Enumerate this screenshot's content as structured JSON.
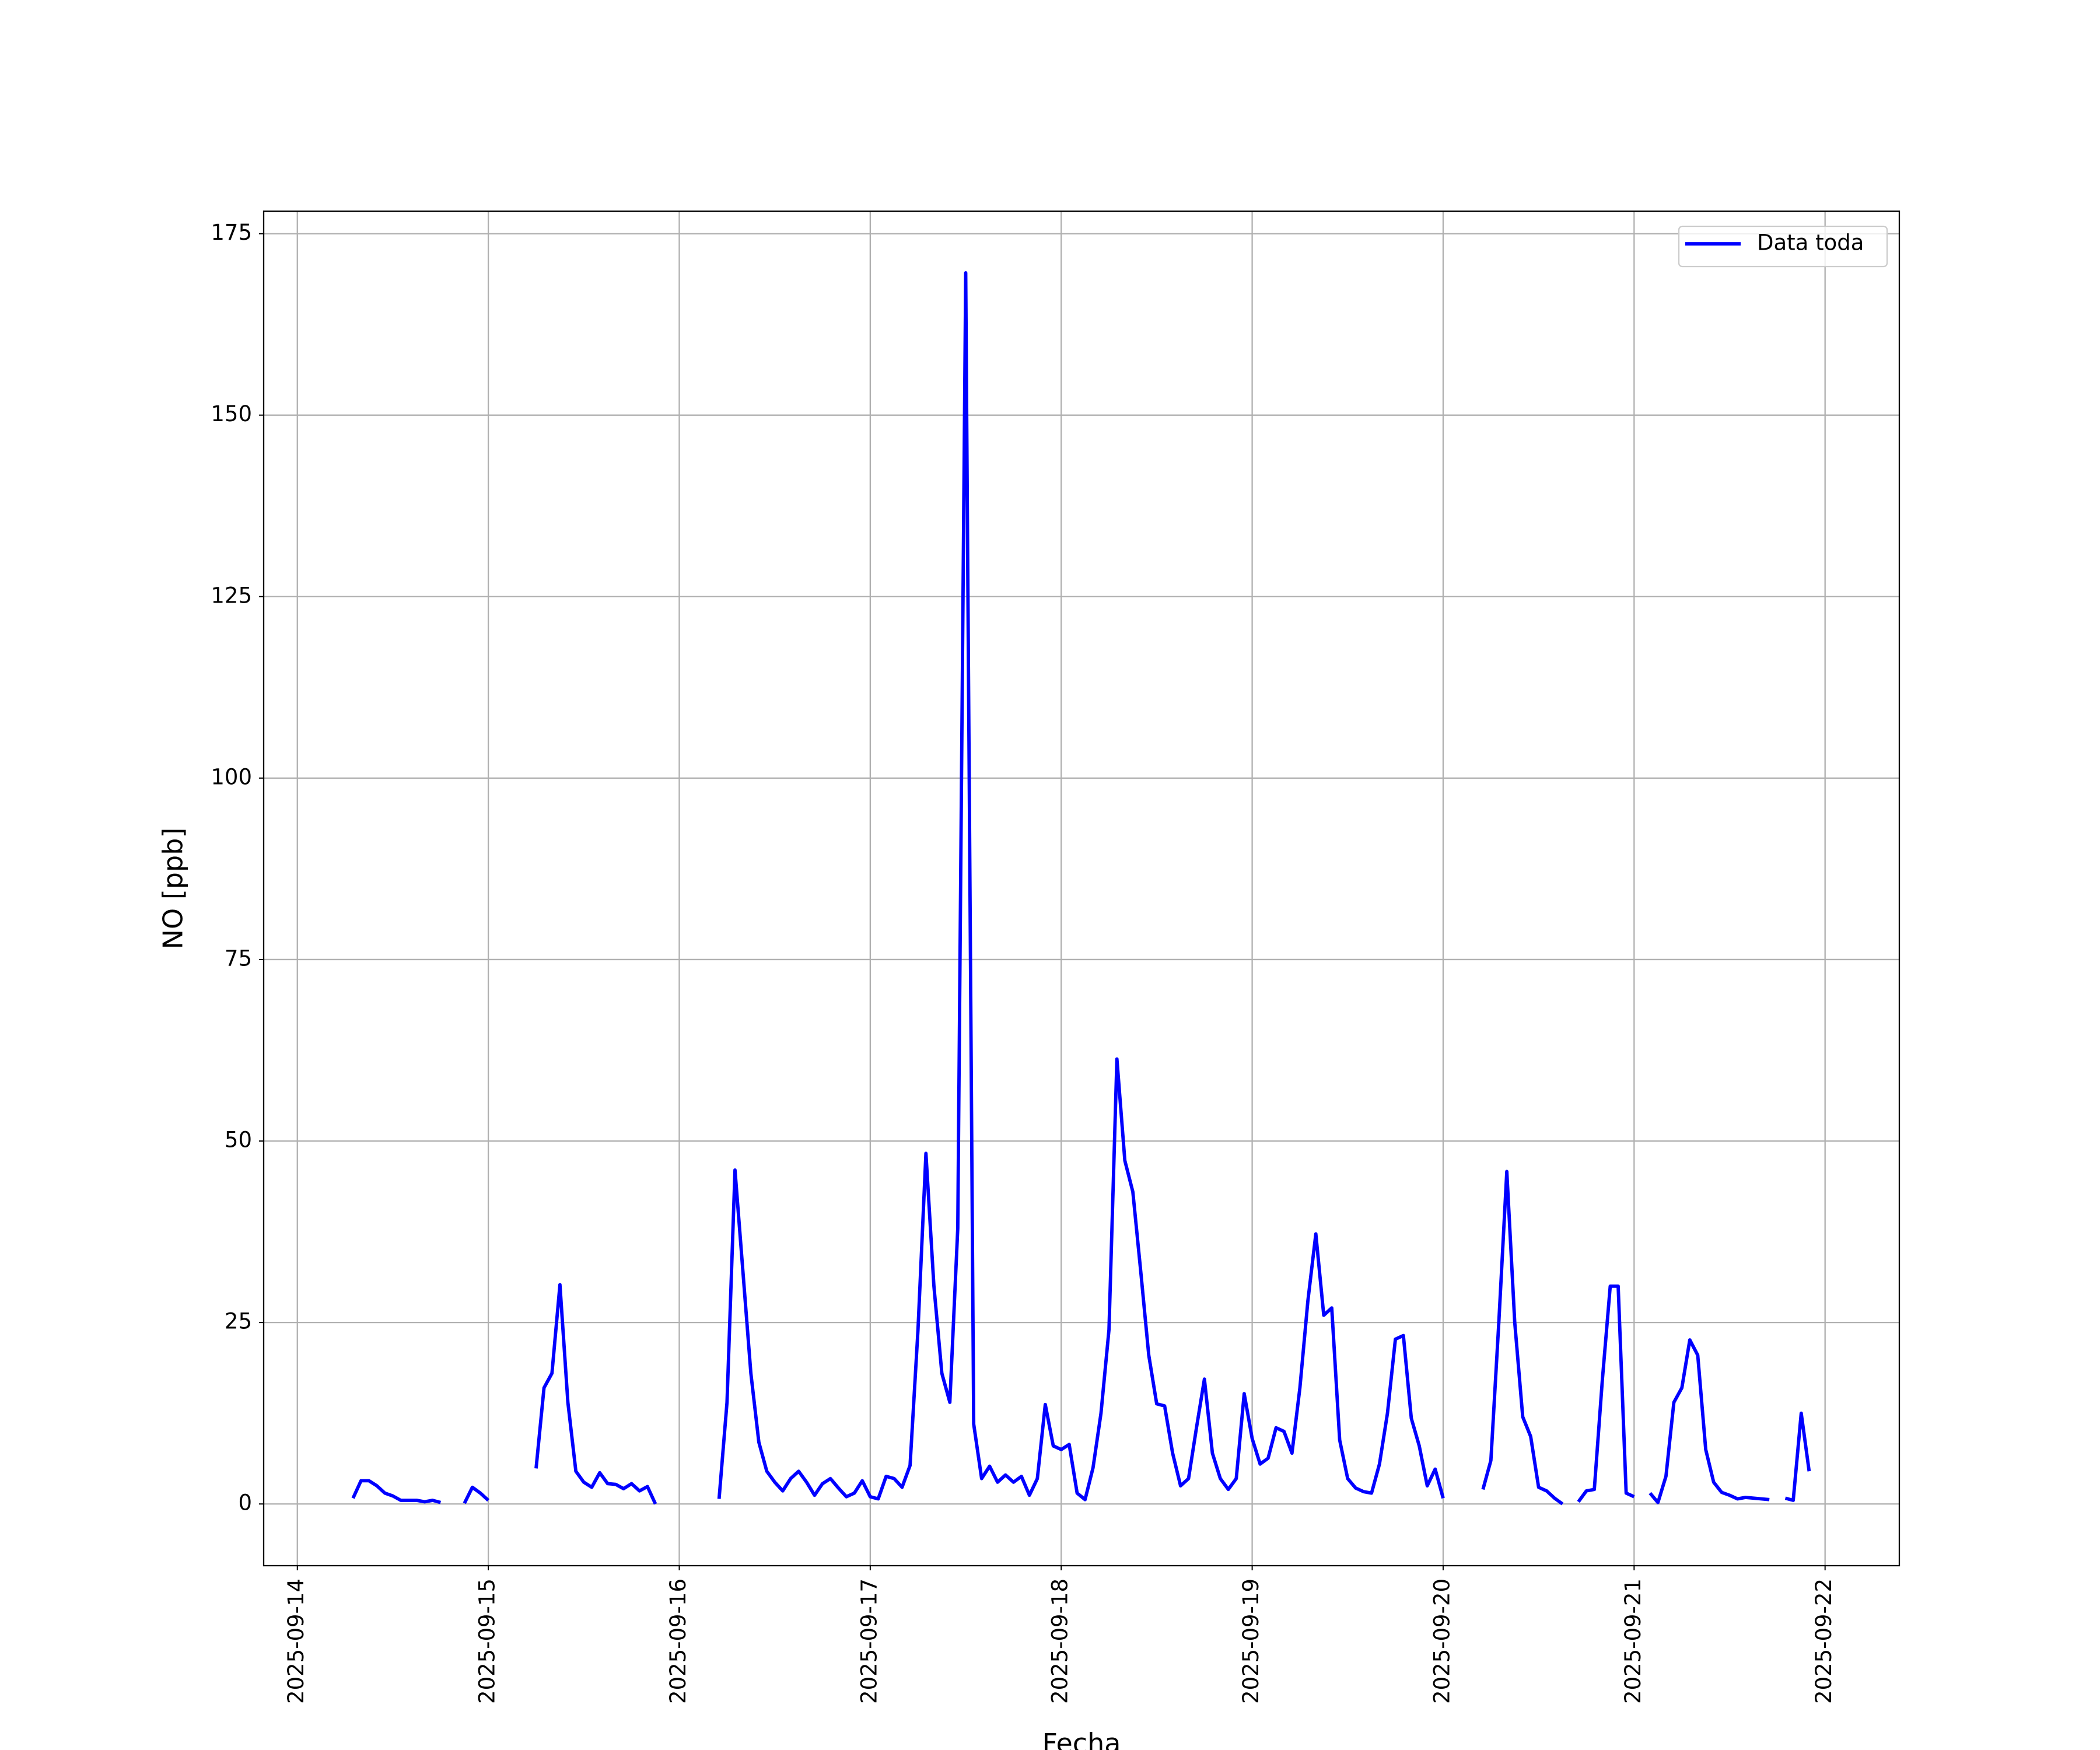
{
  "chart_data": {
    "type": "line",
    "xlabel": "Fecha",
    "ylabel": "NO [ppb]",
    "x": [
      "2025-09-14 07:00",
      "2025-09-14 08:00",
      "2025-09-14 09:00",
      "2025-09-14 10:00",
      "2025-09-14 11:00",
      "2025-09-14 12:00",
      "2025-09-14 13:00",
      "2025-09-14 14:00",
      "2025-09-14 15:00",
      "2025-09-14 16:00",
      "2025-09-14 17:00",
      "2025-09-14 18:00",
      "2025-09-14 19:00",
      "2025-09-14 21:00",
      "2025-09-14 22:00",
      "2025-09-14 23:00",
      "2025-09-15 00:00",
      "2025-09-15 03:00",
      "2025-09-15 06:00",
      "2025-09-15 07:00",
      "2025-09-15 08:00",
      "2025-09-15 09:00",
      "2025-09-15 10:00",
      "2025-09-15 11:00",
      "2025-09-15 12:00",
      "2025-09-15 13:00",
      "2025-09-15 14:00",
      "2025-09-15 15:00",
      "2025-09-15 16:00",
      "2025-09-15 17:00",
      "2025-09-15 18:00",
      "2025-09-15 19:00",
      "2025-09-15 20:00",
      "2025-09-15 21:00",
      "2025-09-16 02:00",
      "2025-09-16 05:00",
      "2025-09-16 06:00",
      "2025-09-16 07:00",
      "2025-09-16 08:00",
      "2025-09-16 09:00",
      "2025-09-16 10:00",
      "2025-09-16 11:00",
      "2025-09-16 12:00",
      "2025-09-16 13:00",
      "2025-09-16 14:00",
      "2025-09-16 15:00",
      "2025-09-16 16:00",
      "2025-09-16 17:00",
      "2025-09-16 18:00",
      "2025-09-16 19:00",
      "2025-09-16 20:00",
      "2025-09-16 21:00",
      "2025-09-16 22:00",
      "2025-09-16 23:00",
      "2025-09-17 00:00",
      "2025-09-17 01:00",
      "2025-09-17 02:00",
      "2025-09-17 03:00",
      "2025-09-17 04:00",
      "2025-09-17 05:00",
      "2025-09-17 06:00",
      "2025-09-17 07:00",
      "2025-09-17 08:00",
      "2025-09-17 09:00",
      "2025-09-17 10:00",
      "2025-09-17 11:00",
      "2025-09-17 12:00",
      "2025-09-17 13:00",
      "2025-09-17 14:00",
      "2025-09-17 15:00",
      "2025-09-17 16:00",
      "2025-09-17 17:00",
      "2025-09-17 18:00",
      "2025-09-17 19:00",
      "2025-09-17 20:00",
      "2025-09-17 21:00",
      "2025-09-17 22:00",
      "2025-09-17 23:00",
      "2025-09-18 00:00",
      "2025-09-18 01:00",
      "2025-09-18 02:00",
      "2025-09-18 03:00",
      "2025-09-18 04:00",
      "2025-09-18 05:00",
      "2025-09-18 06:00",
      "2025-09-18 07:00",
      "2025-09-18 08:00",
      "2025-09-18 09:00",
      "2025-09-18 10:00",
      "2025-09-18 11:00",
      "2025-09-18 12:00",
      "2025-09-18 13:00",
      "2025-09-18 14:00",
      "2025-09-18 15:00",
      "2025-09-18 16:00",
      "2025-09-18 17:00",
      "2025-09-18 18:00",
      "2025-09-18 19:00",
      "2025-09-18 20:00",
      "2025-09-18 21:00",
      "2025-09-18 22:00",
      "2025-09-18 23:00",
      "2025-09-19 00:00",
      "2025-09-19 01:00",
      "2025-09-19 02:00",
      "2025-09-19 03:00",
      "2025-09-19 04:00",
      "2025-09-19 05:00",
      "2025-09-19 06:00",
      "2025-09-19 07:00",
      "2025-09-19 08:00",
      "2025-09-19 09:00",
      "2025-09-19 10:00",
      "2025-09-19 11:00",
      "2025-09-19 12:00",
      "2025-09-19 13:00",
      "2025-09-19 14:00",
      "2025-09-19 15:00",
      "2025-09-19 16:00",
      "2025-09-19 17:00",
      "2025-09-19 18:00",
      "2025-09-19 19:00",
      "2025-09-19 20:00",
      "2025-09-19 21:00",
      "2025-09-19 22:00",
      "2025-09-19 23:00",
      "2025-09-20 00:00",
      "2025-09-20 02:00",
      "2025-09-20 05:00",
      "2025-09-20 06:00",
      "2025-09-20 07:00",
      "2025-09-20 08:00",
      "2025-09-20 09:00",
      "2025-09-20 10:00",
      "2025-09-20 11:00",
      "2025-09-20 12:00",
      "2025-09-20 13:00",
      "2025-09-20 14:00",
      "2025-09-20 15:00",
      "2025-09-20 16:00",
      "2025-09-20 17:00",
      "2025-09-20 18:00",
      "2025-09-20 19:00",
      "2025-09-20 20:00",
      "2025-09-20 21:00",
      "2025-09-20 22:00",
      "2025-09-20 23:00",
      "2025-09-21 00:00",
      "2025-09-21 01:00",
      "2025-09-21 02:00",
      "2025-09-21 03:00",
      "2025-09-21 04:00",
      "2025-09-21 05:00",
      "2025-09-21 06:00",
      "2025-09-21 07:00",
      "2025-09-21 08:00",
      "2025-09-21 09:00",
      "2025-09-21 10:00",
      "2025-09-21 11:00",
      "2025-09-21 12:00",
      "2025-09-21 13:00",
      "2025-09-21 14:00",
      "2025-09-21 15:00",
      "2025-09-21 16:00",
      "2025-09-21 17:00",
      "2025-09-21 18:00",
      "2025-09-21 19:00",
      "2025-09-21 20:00",
      "2025-09-21 21:00",
      "2025-09-21 22:00"
    ],
    "series": [
      {
        "name": "Data toda",
        "color": "#0000ff",
        "values": [
          0.8,
          3.2,
          3.2,
          2.5,
          1.5,
          1.1,
          0.5,
          0.5,
          0.5,
          0.3,
          0.5,
          0.2,
          null,
          0.1,
          2.3,
          1.5,
          0.5,
          null,
          4.9,
          16,
          18,
          30.2,
          14,
          4.5,
          3,
          2.3,
          4.3,
          2.8,
          2.7,
          2.1,
          2.8,
          1.8,
          2.4,
          0,
          null,
          0.7,
          14,
          46,
          32,
          18,
          8.5,
          4.5,
          3,
          1.8,
          3.5,
          4.5,
          3,
          1.2,
          2.8,
          3.5,
          2.2,
          1,
          1.5,
          3.2,
          1,
          0.7,
          3.8,
          3.5,
          2.3,
          5.3,
          24,
          48.3,
          30,
          18,
          14,
          38,
          169.6,
          11,
          3.5,
          5.2,
          3,
          4,
          3,
          3.8,
          1.2,
          3.5,
          13.7,
          8,
          7.5,
          8.2,
          1.5,
          0.6,
          5,
          12.5,
          24,
          61.3,
          47.3,
          43,
          32,
          20.5,
          13.8,
          13.5,
          7,
          2.5,
          3.5,
          10.5,
          17.2,
          7,
          3.5,
          2,
          3.5,
          15.2,
          9,
          5.5,
          6.3,
          10.5,
          10,
          7,
          16,
          28,
          37.2,
          26,
          27,
          8.8,
          3.5,
          2.2,
          1.7,
          1.5,
          5.5,
          12.5,
          22.7,
          23.2,
          11.8,
          8,
          2.5,
          4.8,
          0.8,
          null,
          2,
          6,
          25,
          45.8,
          25,
          12,
          9.3,
          2.3,
          1.8,
          0.8,
          0,
          null,
          0.3,
          1.8,
          2,
          17,
          30,
          30,
          1.5,
          1,
          null,
          1.5,
          0.2,
          3.8,
          14,
          16,
          22.6,
          20.5,
          7.5,
          3,
          1.6,
          1.2,
          0.7,
          0.9,
          0.8,
          0.7,
          0.6,
          null,
          0.8,
          0.5,
          12.5,
          4.5
        ]
      }
    ],
    "xlim": [
      "2025-09-13 19:46",
      "2025-09-22 09:20"
    ],
    "xticks": [
      "2025-09-14",
      "2025-09-15",
      "2025-09-16",
      "2025-09-17",
      "2025-09-18",
      "2025-09-19",
      "2025-09-20",
      "2025-09-21",
      "2025-09-22"
    ],
    "ylim": [
      -8.5,
      178.1
    ],
    "yticks": [
      0,
      25,
      50,
      75,
      100,
      125,
      150,
      175
    ],
    "grid": true,
    "legend": "upper right"
  }
}
